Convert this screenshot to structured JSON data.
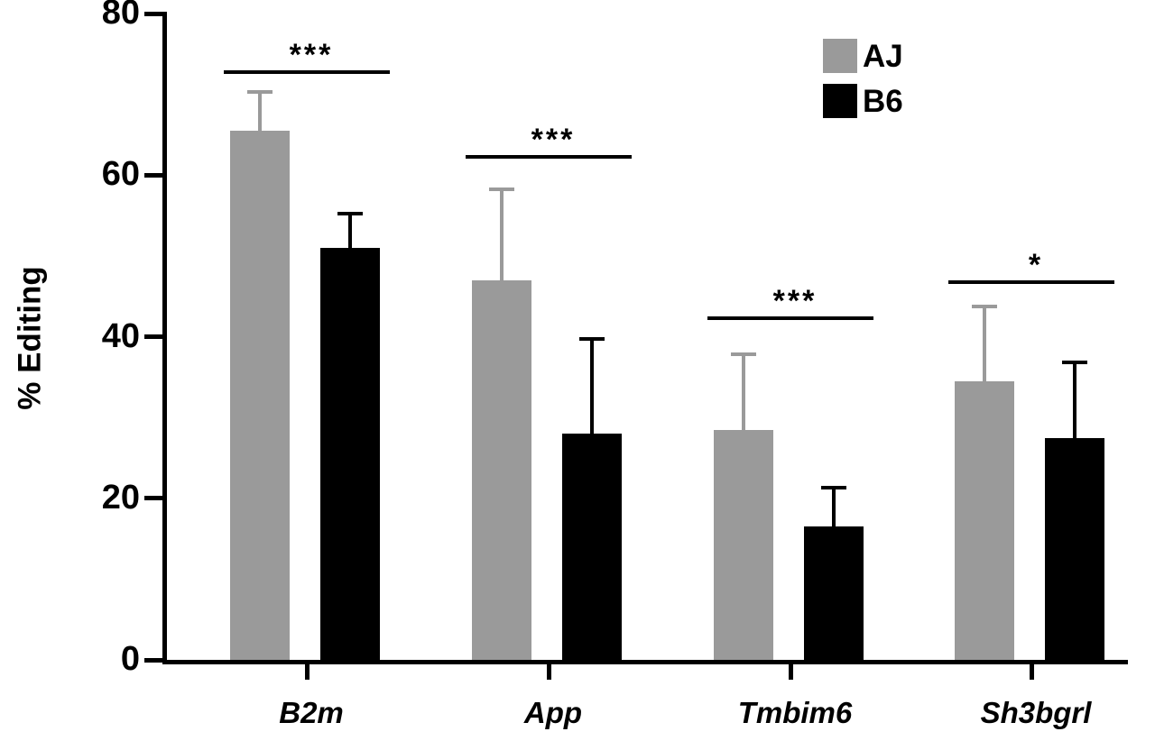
{
  "chart_data": {
    "type": "bar",
    "title": "",
    "xlabel": "",
    "ylabel": "% Editing",
    "ylim": [
      0,
      80
    ],
    "yticks": [
      0,
      20,
      40,
      60,
      80
    ],
    "grid": false,
    "legend_position": "top-right",
    "categories": [
      "B2m",
      "App",
      "Tmbim6",
      "Sh3bgrl"
    ],
    "series": [
      {
        "name": "AJ",
        "color": "#9a9a9a",
        "values": [
          65.5,
          47,
          28.5,
          34.5
        ],
        "errors": [
          5,
          11.5,
          9.5,
          9.5
        ]
      },
      {
        "name": "B6",
        "color": "#000000",
        "values": [
          51,
          28,
          16.5,
          27.5
        ],
        "errors": [
          4.5,
          12,
          5,
          9.5
        ]
      }
    ],
    "significance": [
      {
        "category": "B2m",
        "label": "***",
        "y": 73
      },
      {
        "category": "App",
        "label": "***",
        "y": 62.5
      },
      {
        "category": "Tmbim6",
        "label": "***",
        "y": 42.5
      },
      {
        "category": "Sh3bgrl",
        "label": "*",
        "y": 47
      }
    ]
  }
}
